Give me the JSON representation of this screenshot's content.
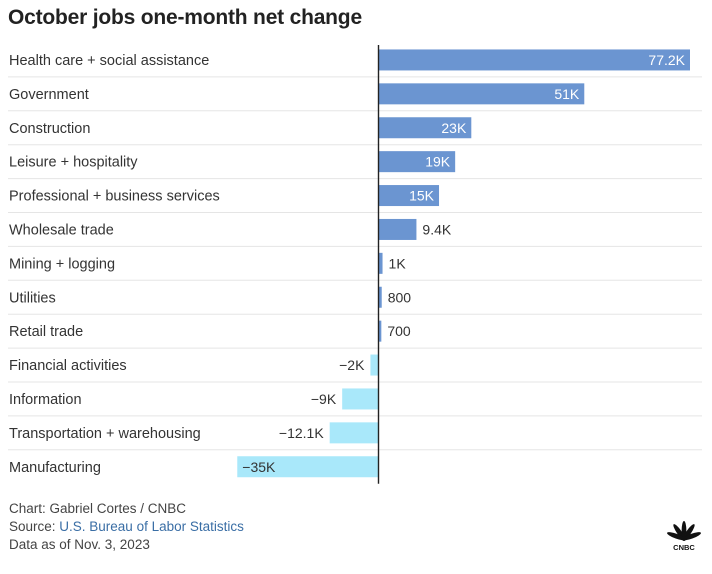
{
  "chart_data": {
    "type": "bar",
    "orientation": "horizontal",
    "title": "October jobs one-month net change",
    "xlabel": "",
    "ylabel": "",
    "categories": [
      "Health care + social assistance",
      "Government",
      "Construction",
      "Leisure + hospitality",
      "Professional + business services",
      "Wholesale trade",
      "Mining + logging",
      "Utilities",
      "Retail trade",
      "Financial activities",
      "Information",
      "Transportation + warehousing",
      "Manufacturing"
    ],
    "values": [
      77200,
      51000,
      23000,
      19000,
      15000,
      9400,
      1000,
      800,
      700,
      -2000,
      -9000,
      -12100,
      -35000
    ],
    "value_labels": [
      "77.2K",
      "51K",
      "23K",
      "19K",
      "15K",
      "9.4K",
      "1K",
      "800",
      "700",
      "−2K",
      "−9K",
      "−12.1K",
      "−35K"
    ],
    "grid": false,
    "legend": "none",
    "colors": {
      "positive": "#6b95d1",
      "negative": "#a9e8fa",
      "axis": "#222222",
      "gridline": "#e5e5e5"
    }
  },
  "footer": {
    "credit": "Chart: Gabriel Cortes / CNBC",
    "source_prefix": "Source: ",
    "source_org": "U.S. Bureau of Labor Statistics",
    "date": "Data as of Nov. 3, 2023"
  },
  "logo": {
    "icon": "peacock-icon",
    "text": "CNBC"
  }
}
